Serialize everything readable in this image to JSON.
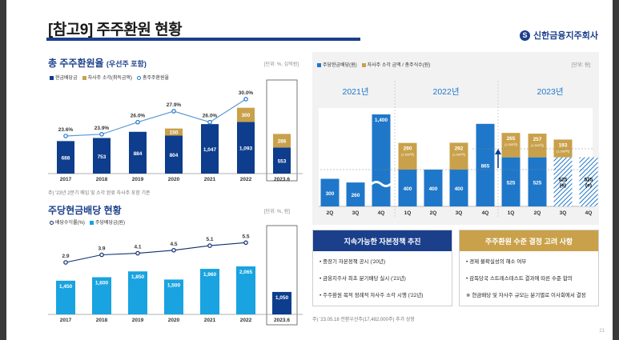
{
  "page": {
    "title": "[참고9] 주주환원 현황",
    "brand": "신한금융지주회사",
    "page_number": "21"
  },
  "left_top": {
    "title": "총 주주환원율",
    "subtitle": "(우선주 포함)",
    "unit": "[단위: %, 십억원]",
    "legend": [
      "현금배당금",
      "자사주 소각(취득금액)",
      "총주주환원율"
    ],
    "note": "주) '23년 2분기 매입 및 소각 완료 자사주 포함 기준"
  },
  "left_bottom": {
    "title": "주당현금배당 현황",
    "unit": "[단위: %, 원]",
    "legend": [
      "배당수익률(%)",
      "주당배당금(원)"
    ]
  },
  "right": {
    "legend": [
      "주당현금배당(원)",
      "자사주 소각 금액 / 총주식수(원)"
    ],
    "unit": "[단위: 원]",
    "year_labels": [
      "2021년",
      "2022년",
      "2023년"
    ],
    "note": "주) '23.05.18 전환우선주(17,482,000주) 추가 상장"
  },
  "box_left": {
    "title": "지속가능한 자본정책 추진",
    "items": [
      "중장기 자본정책 공시 ('20년)",
      "금융지주사 최초 분기배당 실시 ('21년)",
      "주주환원 목적 정례적 자사주 소각 시행 ('22년)"
    ]
  },
  "box_right": {
    "title": "주주환원 수준 결정 고려 사항",
    "items": [
      "경제 불확실성의 해소 여부",
      "감독당국 스트레스테스트 결과에 따른 수준 합의",
      "※ 현금배당 및 자사주 규모는 분기별로 이사회에서 결정"
    ]
  },
  "colors": {
    "navy": "#0d3d8c",
    "sky": "#19a3e0",
    "gold": "#c9a14a",
    "line": "#1f77c9",
    "grey_text": "#888888"
  },
  "chart_data": [
    {
      "type": "bar",
      "name": "total-shareholder-return",
      "categories": [
        "2017",
        "2018",
        "2019",
        "2020",
        "2021",
        "2022",
        "2023.6"
      ],
      "series": [
        {
          "name": "현금배당금",
          "values": [
            688,
            753,
            884,
            804,
            1047,
            1093,
            553
          ]
        },
        {
          "name": "자사주 소각(취득금액)",
          "values": [
            0,
            0,
            0,
            150,
            0,
            300,
            286
          ]
        }
      ],
      "line": {
        "name": "총주주환원율",
        "values": [
          23.6,
          23.9,
          26.0,
          27.9,
          26.0,
          30.0,
          null
        ],
        "labels": [
          "23.6%",
          "23.9%",
          "26.0%",
          "27.9%",
          "26.0%",
          "30.0%",
          ""
        ]
      },
      "ylim": [
        0,
        1500
      ]
    },
    {
      "type": "bar",
      "name": "dividend-per-share",
      "categories": [
        "2017",
        "2018",
        "2019",
        "2020",
        "2021",
        "2022",
        "2023.6"
      ],
      "series": [
        {
          "name": "주당배당금(원)",
          "values": [
            1450,
            1600,
            1850,
            1500,
            1960,
            2065,
            1050
          ]
        }
      ],
      "line": {
        "name": "배당수익률(%)",
        "values": [
          2.9,
          3.9,
          4.1,
          4.5,
          5.1,
          5.5,
          null
        ],
        "labels": [
          "2.9",
          "3.9",
          "4.1",
          "4.5",
          "5.1",
          "5.5",
          ""
        ]
      },
      "ylim": [
        0,
        2500
      ]
    },
    {
      "type": "bar",
      "name": "quarterly-return-per-share",
      "categories": [
        "2Q",
        "3Q",
        "4Q",
        "1Q",
        "2Q",
        "3Q",
        "4Q",
        "1Q",
        "2Q",
        "3Q",
        "4Q"
      ],
      "groups": [
        {
          "label": "2021년",
          "count": 3
        },
        {
          "label": "2022년",
          "count": 4
        },
        {
          "label": "2023년",
          "count": 4
        }
      ],
      "series": [
        {
          "name": "주당현금배당(원)",
          "values": [
            300,
            260,
            1400,
            400,
            400,
            400,
            865,
            525,
            525,
            525,
            525
          ],
          "labels": [
            "300",
            "260",
            "1,400",
            "400",
            "400",
            "400",
            "865",
            "525",
            "525",
            "525\n(e)",
            "525\n(e)"
          ],
          "estimated": [
            false,
            false,
            false,
            false,
            false,
            false,
            false,
            false,
            false,
            true,
            true
          ]
        },
        {
          "name": "자사주 소각 금액 / 총주식수(원)",
          "values": [
            0,
            0,
            0,
            290,
            0,
            292,
            0,
            265,
            257,
            193,
            0
          ],
          "labels": [
            "",
            "",
            "",
            "290",
            "",
            "292",
            "",
            "265",
            "257",
            "193",
            ""
          ],
          "sub_labels": [
            "",
            "",
            "",
            "(1,500억)",
            "",
            "(1,500억)",
            "",
            "(1,500억)",
            "(1,500억)",
            "(1,000억)",
            ""
          ]
        }
      ]
    }
  ]
}
